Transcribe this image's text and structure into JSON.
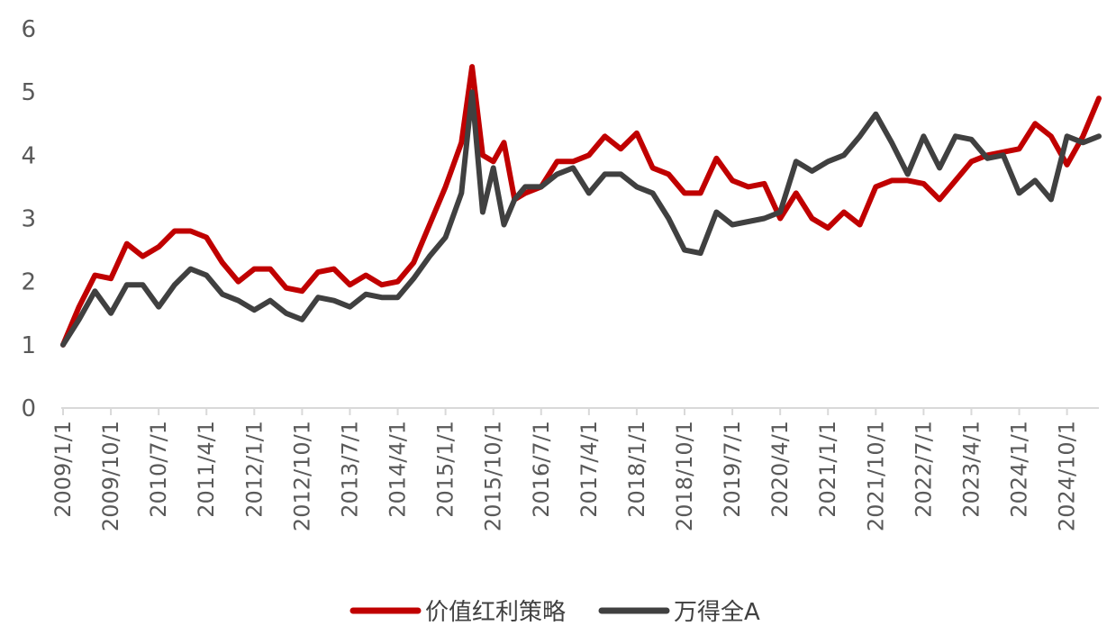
{
  "chart_data": {
    "type": "line",
    "title": "",
    "xlabel": "",
    "ylabel": "",
    "ylim": [
      0,
      6
    ],
    "yticks": [
      "0",
      "1",
      "2",
      "3",
      "4",
      "5",
      "6"
    ],
    "grid": false,
    "legend_position": "bottom",
    "xticks": [
      "2009/1/1",
      "2009/10/1",
      "2010/7/1",
      "2011/4/1",
      "2012/1/1",
      "2012/10/1",
      "2013/7/1",
      "2014/4/1",
      "2015/1/1",
      "2015/10/1",
      "2016/7/1",
      "2017/4/1",
      "2018/1/1",
      "2018/10/1",
      "2019/7/1",
      "2020/4/1",
      "2021/1/1",
      "2021/10/1",
      "2022/7/1",
      "2023/4/1",
      "2024/1/1",
      "2024/10/1"
    ],
    "x": [
      "2009-01",
      "2009-04",
      "2009-07",
      "2009-10",
      "2010-01",
      "2010-04",
      "2010-07",
      "2010-10",
      "2011-01",
      "2011-04",
      "2011-07",
      "2011-10",
      "2012-01",
      "2012-04",
      "2012-07",
      "2012-10",
      "2013-01",
      "2013-04",
      "2013-07",
      "2013-10",
      "2014-01",
      "2014-04",
      "2014-07",
      "2014-10",
      "2015-01",
      "2015-04",
      "2015-06",
      "2015-08",
      "2015-10",
      "2015-12",
      "2016-02",
      "2016-04",
      "2016-07",
      "2016-10",
      "2017-01",
      "2017-04",
      "2017-07",
      "2017-10",
      "2018-01",
      "2018-04",
      "2018-07",
      "2018-10",
      "2019-01",
      "2019-04",
      "2019-07",
      "2019-10",
      "2020-01",
      "2020-04",
      "2020-07",
      "2020-10",
      "2021-01",
      "2021-04",
      "2021-07",
      "2021-10",
      "2022-01",
      "2022-04",
      "2022-07",
      "2022-10",
      "2023-01",
      "2023-04",
      "2023-07",
      "2023-10",
      "2024-01",
      "2024-04",
      "2024-07",
      "2024-10",
      "2025-01",
      "2025-04"
    ],
    "series": [
      {
        "name": "价值红利策略",
        "color": "#C00000",
        "values": [
          1.0,
          1.6,
          2.1,
          2.05,
          2.6,
          2.4,
          2.55,
          2.8,
          2.8,
          2.7,
          2.3,
          2.0,
          2.2,
          2.2,
          1.9,
          1.85,
          2.15,
          2.2,
          1.95,
          2.1,
          1.95,
          2.0,
          2.3,
          2.9,
          3.5,
          4.2,
          5.4,
          4.0,
          3.9,
          4.2,
          3.3,
          3.4,
          3.5,
          3.9,
          3.9,
          4.0,
          4.3,
          4.1,
          4.35,
          3.8,
          3.7,
          3.4,
          3.4,
          3.95,
          3.6,
          3.5,
          3.55,
          3.0,
          3.4,
          3.0,
          2.85,
          3.1,
          2.9,
          3.5,
          3.6,
          3.6,
          3.55,
          3.3,
          3.6,
          3.9,
          4.0,
          4.05,
          4.1,
          4.5,
          4.3,
          3.85,
          4.3,
          4.9
        ]
      },
      {
        "name": "万得全A",
        "color": "#404040",
        "values": [
          1.0,
          1.4,
          1.85,
          1.5,
          1.95,
          1.95,
          1.6,
          1.95,
          2.2,
          2.1,
          1.8,
          1.7,
          1.55,
          1.7,
          1.5,
          1.4,
          1.75,
          1.7,
          1.6,
          1.8,
          1.75,
          1.75,
          2.05,
          2.4,
          2.7,
          3.4,
          5.0,
          3.1,
          3.8,
          2.9,
          3.3,
          3.5,
          3.5,
          3.7,
          3.8,
          3.4,
          3.7,
          3.7,
          3.5,
          3.4,
          3.0,
          2.5,
          2.45,
          3.1,
          2.9,
          2.95,
          3.0,
          3.1,
          3.9,
          3.75,
          3.9,
          4.0,
          4.3,
          4.65,
          4.2,
          3.7,
          4.3,
          3.8,
          4.3,
          4.25,
          3.95,
          4.0,
          3.4,
          3.6,
          3.3,
          4.3,
          4.2,
          4.3
        ]
      }
    ]
  }
}
